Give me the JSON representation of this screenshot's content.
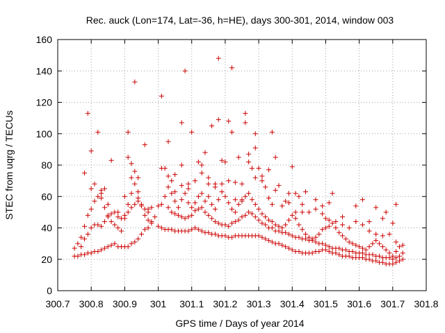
{
  "chart_data": {
    "type": "scatter",
    "title": "Rec. auck (Lon=174, Lat=-36, h=HE), days 300-301, 2014, window 003",
    "xlabel": "GPS time / Days of year 2014",
    "ylabel": "STEC from uqrg / TECUs",
    "xlim": [
      300.7,
      301.8
    ],
    "ylim": [
      0,
      160
    ],
    "grid": true,
    "marker": "+",
    "color": "#cc0000",
    "x_ticks": [
      "300.7",
      "300.8",
      "300.9",
      "301",
      "301.1",
      "301.2",
      "301.3",
      "301.4",
      "301.5",
      "301.6",
      "301.7",
      "301.8"
    ],
    "x_tick_values": [
      300.7,
      300.8,
      300.9,
      301.0,
      301.1,
      301.2,
      301.3,
      301.4,
      301.5,
      301.6,
      301.7,
      301.8
    ],
    "y_ticks": [
      "0",
      "20",
      "40",
      "60",
      "80",
      "100",
      "120",
      "140",
      "160"
    ],
    "y_tick_values": [
      0,
      20,
      40,
      60,
      80,
      100,
      120,
      140,
      160
    ],
    "points": [
      [
        300.75,
        22
      ],
      [
        300.76,
        22
      ],
      [
        300.77,
        23
      ],
      [
        300.78,
        23
      ],
      [
        300.79,
        24
      ],
      [
        300.8,
        24
      ],
      [
        300.81,
        25
      ],
      [
        300.82,
        25
      ],
      [
        300.83,
        26
      ],
      [
        300.84,
        27
      ],
      [
        300.85,
        28
      ],
      [
        300.86,
        29
      ],
      [
        300.87,
        30
      ],
      [
        300.88,
        28
      ],
      [
        300.89,
        28
      ],
      [
        300.9,
        28
      ],
      [
        300.91,
        28
      ],
      [
        300.92,
        30
      ],
      [
        300.93,
        31
      ],
      [
        300.94,
        33
      ],
      [
        300.95,
        36
      ],
      [
        300.96,
        39
      ],
      [
        300.97,
        40
      ],
      [
        300.98,
        43
      ],
      [
        300.99,
        47
      ],
      [
        301.0,
        41
      ],
      [
        301.01,
        40
      ],
      [
        301.02,
        39
      ],
      [
        301.03,
        39
      ],
      [
        301.04,
        39
      ],
      [
        301.05,
        38
      ],
      [
        301.06,
        38
      ],
      [
        301.07,
        38
      ],
      [
        301.08,
        38
      ],
      [
        301.09,
        38
      ],
      [
        301.1,
        39
      ],
      [
        301.11,
        40
      ],
      [
        301.12,
        39
      ],
      [
        301.13,
        38
      ],
      [
        301.14,
        37
      ],
      [
        301.15,
        37
      ],
      [
        301.16,
        36
      ],
      [
        301.17,
        36
      ],
      [
        301.18,
        35
      ],
      [
        301.19,
        35
      ],
      [
        301.2,
        35
      ],
      [
        301.21,
        34
      ],
      [
        301.22,
        34
      ],
      [
        301.23,
        35
      ],
      [
        301.24,
        35
      ],
      [
        301.25,
        35
      ],
      [
        301.26,
        35
      ],
      [
        301.27,
        35
      ],
      [
        301.28,
        35
      ],
      [
        301.29,
        35
      ],
      [
        301.3,
        35
      ],
      [
        301.31,
        34
      ],
      [
        301.32,
        33
      ],
      [
        301.33,
        32
      ],
      [
        301.34,
        31
      ],
      [
        301.35,
        30
      ],
      [
        301.36,
        30
      ],
      [
        301.37,
        29
      ],
      [
        301.38,
        28
      ],
      [
        301.39,
        27
      ],
      [
        301.4,
        26
      ],
      [
        301.41,
        25
      ],
      [
        301.42,
        25
      ],
      [
        301.43,
        24
      ],
      [
        301.44,
        24
      ],
      [
        301.45,
        24
      ],
      [
        301.46,
        24
      ],
      [
        301.47,
        25
      ],
      [
        301.48,
        25
      ],
      [
        301.49,
        26
      ],
      [
        301.5,
        26
      ],
      [
        301.51,
        25
      ],
      [
        301.52,
        24
      ],
      [
        301.53,
        24
      ],
      [
        301.54,
        23
      ],
      [
        301.55,
        22
      ],
      [
        301.56,
        22
      ],
      [
        301.57,
        22
      ],
      [
        301.58,
        21
      ],
      [
        301.59,
        21
      ],
      [
        301.6,
        21
      ],
      [
        301.61,
        21
      ],
      [
        301.62,
        20
      ],
      [
        301.63,
        20
      ],
      [
        301.64,
        19
      ],
      [
        301.65,
        19
      ],
      [
        301.66,
        18
      ],
      [
        301.67,
        18
      ],
      [
        301.68,
        17
      ],
      [
        301.69,
        17
      ],
      [
        301.7,
        17
      ],
      [
        301.71,
        18
      ],
      [
        301.72,
        19
      ],
      [
        301.73,
        20
      ],
      [
        300.75,
        27
      ],
      [
        300.77,
        28
      ],
      [
        300.78,
        33
      ],
      [
        300.79,
        36
      ],
      [
        300.8,
        40
      ],
      [
        300.81,
        42
      ],
      [
        300.82,
        42
      ],
      [
        300.83,
        41
      ],
      [
        300.84,
        44
      ],
      [
        300.85,
        47
      ],
      [
        300.86,
        49
      ],
      [
        300.87,
        50
      ],
      [
        300.88,
        47
      ],
      [
        300.89,
        46
      ],
      [
        300.9,
        48
      ],
      [
        300.91,
        50
      ],
      [
        300.92,
        53
      ],
      [
        300.93,
        55
      ],
      [
        300.94,
        57
      ],
      [
        300.95,
        54
      ],
      [
        300.96,
        52
      ],
      [
        300.97,
        52
      ],
      [
        300.98,
        53
      ],
      [
        301.0,
        54
      ],
      [
        301.01,
        55
      ],
      [
        301.03,
        53
      ],
      [
        301.04,
        50
      ],
      [
        301.05,
        49
      ],
      [
        301.06,
        48
      ],
      [
        301.07,
        47
      ],
      [
        301.08,
        46
      ],
      [
        301.09,
        47
      ],
      [
        301.1,
        48
      ],
      [
        301.11,
        51
      ],
      [
        301.12,
        52
      ],
      [
        301.13,
        53
      ],
      [
        301.14,
        50
      ],
      [
        301.15,
        48
      ],
      [
        301.16,
        46
      ],
      [
        301.17,
        44
      ],
      [
        301.18,
        43
      ],
      [
        301.19,
        42
      ],
      [
        301.2,
        42
      ],
      [
        301.21,
        41
      ],
      [
        301.22,
        43
      ],
      [
        301.23,
        44
      ],
      [
        301.24,
        45
      ],
      [
        301.25,
        47
      ],
      [
        301.26,
        48
      ],
      [
        301.27,
        50
      ],
      [
        301.28,
        49
      ],
      [
        301.29,
        47
      ],
      [
        301.3,
        45
      ],
      [
        301.31,
        43
      ],
      [
        301.32,
        42
      ],
      [
        301.33,
        40
      ],
      [
        301.34,
        40
      ],
      [
        301.35,
        38
      ],
      [
        301.36,
        38
      ],
      [
        301.37,
        37
      ],
      [
        301.38,
        37
      ],
      [
        301.39,
        36
      ],
      [
        301.4,
        35
      ],
      [
        301.41,
        34
      ],
      [
        301.42,
        34
      ],
      [
        301.43,
        33
      ],
      [
        301.44,
        33
      ],
      [
        301.45,
        32
      ],
      [
        301.46,
        32
      ],
      [
        301.47,
        31
      ],
      [
        301.48,
        30
      ],
      [
        301.49,
        30
      ],
      [
        301.5,
        29
      ],
      [
        301.51,
        28
      ],
      [
        301.52,
        27
      ],
      [
        301.53,
        27
      ],
      [
        301.54,
        27
      ],
      [
        301.55,
        26
      ],
      [
        301.56,
        26
      ],
      [
        301.57,
        25
      ],
      [
        301.58,
        25
      ],
      [
        301.59,
        24
      ],
      [
        301.6,
        24
      ],
      [
        301.61,
        24
      ],
      [
        301.62,
        23
      ],
      [
        301.63,
        23
      ],
      [
        301.64,
        23
      ],
      [
        301.65,
        22
      ],
      [
        301.66,
        22
      ],
      [
        301.67,
        21
      ],
      [
        301.68,
        21
      ],
      [
        301.69,
        21
      ],
      [
        301.7,
        20
      ],
      [
        301.71,
        21
      ],
      [
        301.72,
        22
      ],
      [
        301.73,
        24
      ],
      [
        300.76,
        30
      ],
      [
        300.77,
        34
      ],
      [
        300.78,
        41
      ],
      [
        300.79,
        48
      ],
      [
        300.8,
        52
      ],
      [
        300.81,
        57
      ],
      [
        300.82,
        60
      ],
      [
        300.83,
        64
      ],
      [
        300.84,
        53
      ],
      [
        300.85,
        48
      ],
      [
        300.86,
        44
      ],
      [
        300.87,
        42
      ],
      [
        300.88,
        40
      ],
      [
        300.89,
        38
      ],
      [
        300.9,
        46
      ],
      [
        300.91,
        55
      ],
      [
        300.92,
        62
      ],
      [
        300.93,
        68
      ],
      [
        300.94,
        59
      ],
      [
        300.95,
        55
      ],
      [
        300.96,
        48
      ],
      [
        300.97,
        45
      ],
      [
        300.98,
        44
      ],
      [
        301.02,
        60
      ],
      [
        301.03,
        66
      ],
      [
        301.04,
        62
      ],
      [
        301.05,
        57
      ],
      [
        301.06,
        53
      ],
      [
        301.07,
        58
      ],
      [
        301.08,
        62
      ],
      [
        301.09,
        56
      ],
      [
        301.1,
        53
      ],
      [
        301.11,
        56
      ],
      [
        301.12,
        60
      ],
      [
        301.13,
        62
      ],
      [
        301.14,
        57
      ],
      [
        301.15,
        60
      ],
      [
        301.16,
        55
      ],
      [
        301.17,
        52
      ],
      [
        301.18,
        58
      ],
      [
        301.19,
        63
      ],
      [
        301.2,
        60
      ],
      [
        301.21,
        56
      ],
      [
        301.22,
        52
      ],
      [
        301.23,
        50
      ],
      [
        301.24,
        55
      ],
      [
        301.25,
        58
      ],
      [
        301.26,
        60
      ],
      [
        301.27,
        62
      ],
      [
        301.28,
        58
      ],
      [
        301.29,
        55
      ],
      [
        301.3,
        52
      ],
      [
        301.31,
        49
      ],
      [
        301.32,
        47
      ],
      [
        301.33,
        45
      ],
      [
        301.34,
        44
      ],
      [
        301.35,
        42
      ],
      [
        301.36,
        41
      ],
      [
        301.37,
        40
      ],
      [
        301.38,
        42
      ],
      [
        301.39,
        45
      ],
      [
        301.4,
        48
      ],
      [
        301.41,
        46
      ],
      [
        301.42,
        42
      ],
      [
        301.43,
        39
      ],
      [
        301.44,
        36
      ],
      [
        301.45,
        34
      ],
      [
        301.46,
        33
      ],
      [
        301.47,
        34
      ],
      [
        301.48,
        36
      ],
      [
        301.49,
        39
      ],
      [
        301.5,
        40
      ],
      [
        301.51,
        41
      ],
      [
        301.52,
        43
      ],
      [
        301.53,
        40
      ],
      [
        301.54,
        37
      ],
      [
        301.55,
        35
      ],
      [
        301.56,
        33
      ],
      [
        301.57,
        31
      ],
      [
        301.58,
        30
      ],
      [
        301.59,
        29
      ],
      [
        301.6,
        28
      ],
      [
        301.61,
        27
      ],
      [
        301.62,
        26
      ],
      [
        301.63,
        28
      ],
      [
        301.64,
        30
      ],
      [
        301.65,
        32
      ],
      [
        301.66,
        30
      ],
      [
        301.67,
        28
      ],
      [
        301.68,
        26
      ],
      [
        301.69,
        24
      ],
      [
        301.7,
        22
      ],
      [
        301.71,
        25
      ],
      [
        301.72,
        28
      ],
      [
        301.73,
        29
      ],
      [
        300.78,
        75
      ],
      [
        300.79,
        113
      ],
      [
        300.8,
        89
      ],
      [
        300.82,
        101
      ],
      [
        300.83,
        59
      ],
      [
        300.84,
        65
      ],
      [
        300.86,
        83
      ],
      [
        300.91,
        85
      ],
      [
        300.91,
        101
      ],
      [
        300.92,
        81
      ],
      [
        300.93,
        133
      ],
      [
        300.93,
        76
      ],
      [
        300.94,
        72
      ],
      [
        300.96,
        93
      ],
      [
        301.01,
        124
      ],
      [
        301.02,
        78
      ],
      [
        301.03,
        95
      ],
      [
        301.04,
        70
      ],
      [
        301.05,
        74
      ],
      [
        301.07,
        107
      ],
      [
        301.07,
        80
      ],
      [
        301.08,
        140
      ],
      [
        301.09,
        65
      ],
      [
        301.1,
        101
      ],
      [
        301.12,
        82
      ],
      [
        301.13,
        75
      ],
      [
        301.14,
        88
      ],
      [
        301.15,
        72
      ],
      [
        301.16,
        105
      ],
      [
        301.17,
        68
      ],
      [
        301.18,
        148
      ],
      [
        301.18,
        109
      ],
      [
        301.19,
        83
      ],
      [
        301.2,
        82
      ],
      [
        301.21,
        108
      ],
      [
        301.22,
        142
      ],
      [
        301.22,
        101
      ],
      [
        301.23,
        69
      ],
      [
        301.24,
        85
      ],
      [
        301.25,
        68
      ],
      [
        301.26,
        113
      ],
      [
        301.26,
        107
      ],
      [
        301.27,
        87
      ],
      [
        301.28,
        78
      ],
      [
        301.29,
        100
      ],
      [
        301.29,
        91
      ],
      [
        301.3,
        78
      ],
      [
        301.31,
        70
      ],
      [
        301.32,
        66
      ],
      [
        301.33,
        77
      ],
      [
        301.34,
        55
      ],
      [
        301.34,
        101
      ],
      [
        301.35,
        85
      ],
      [
        301.36,
        67
      ],
      [
        301.38,
        57
      ],
      [
        301.39,
        62
      ],
      [
        301.4,
        79
      ],
      [
        301.41,
        62
      ],
      [
        301.42,
        60
      ],
      [
        301.43,
        55
      ],
      [
        301.44,
        63
      ],
      [
        301.47,
        58
      ],
      [
        301.49,
        54
      ],
      [
        301.5,
        46
      ],
      [
        301.51,
        56
      ],
      [
        301.52,
        62
      ],
      [
        301.55,
        47
      ],
      [
        301.59,
        54
      ],
      [
        301.61,
        58
      ],
      [
        301.63,
        44
      ],
      [
        301.65,
        53
      ],
      [
        301.67,
        46
      ],
      [
        301.68,
        50
      ],
      [
        301.7,
        43
      ],
      [
        301.71,
        55
      ],
      [
        300.8,
        65
      ],
      [
        300.81,
        68
      ],
      [
        300.83,
        62
      ],
      [
        300.85,
        55
      ],
      [
        300.88,
        50
      ],
      [
        300.9,
        60
      ],
      [
        300.92,
        72
      ],
      [
        300.94,
        63
      ],
      [
        300.97,
        50
      ],
      [
        301.01,
        78
      ],
      [
        301.03,
        73
      ],
      [
        301.05,
        63
      ],
      [
        301.07,
        67
      ],
      [
        301.09,
        68
      ],
      [
        301.11,
        70
      ],
      [
        301.13,
        80
      ],
      [
        301.15,
        68
      ],
      [
        301.17,
        66
      ],
      [
        301.19,
        68
      ],
      [
        301.21,
        70
      ],
      [
        301.23,
        58
      ],
      [
        301.25,
        57
      ],
      [
        301.27,
        82
      ],
      [
        301.29,
        72
      ],
      [
        301.31,
        73
      ],
      [
        301.33,
        59
      ],
      [
        301.35,
        64
      ],
      [
        301.37,
        54
      ],
      [
        301.39,
        56
      ],
      [
        301.41,
        50
      ],
      [
        301.43,
        50
      ],
      [
        301.45,
        50
      ],
      [
        301.47,
        52
      ],
      [
        301.49,
        49
      ],
      [
        301.51,
        45
      ],
      [
        301.53,
        44
      ],
      [
        301.55,
        42
      ],
      [
        301.57,
        40
      ],
      [
        301.59,
        44
      ],
      [
        301.61,
        42
      ],
      [
        301.63,
        38
      ],
      [
        301.65,
        36
      ],
      [
        301.67,
        35
      ],
      [
        301.69,
        36
      ],
      [
        301.71,
        31
      ]
    ]
  }
}
